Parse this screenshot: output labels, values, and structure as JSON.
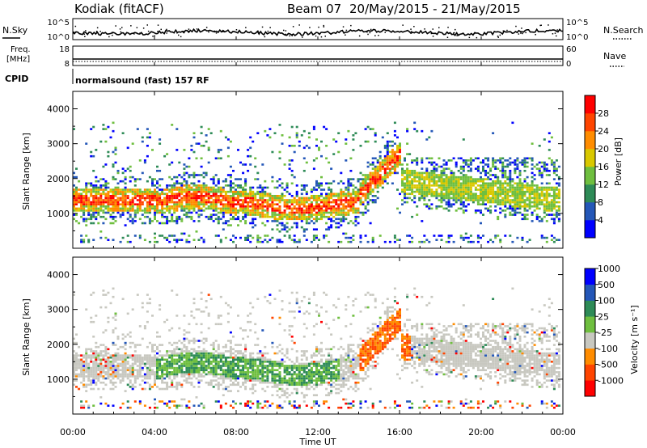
{
  "header": {
    "station": "Kodiak (fitACF)",
    "beam": "Beam 07",
    "dates": "20/May/2015 - 21/May/2015"
  },
  "summary_panels": {
    "nsky": {
      "left_label": "N.Sky",
      "right_label": "N.Search",
      "left_ticks": [
        "10^5",
        "10^0"
      ],
      "right_ticks": [
        "10^5",
        "10^0"
      ]
    },
    "freq": {
      "left_label_1": "Freq.",
      "left_label_2": "[MHz]",
      "right_label": "Nave",
      "left_ticks": [
        "18",
        "8"
      ],
      "right_ticks": [
        "60",
        "0"
      ]
    },
    "cpid": {
      "left_label": "CPID",
      "text": "normalsound (fast) 157 RF"
    }
  },
  "colors": {
    "power": [
      "#0000ff",
      "#2457b8",
      "#2e8b57",
      "#6fbf3f",
      "#d9c800",
      "#ff8c00",
      "#ff4500",
      "#ff0000"
    ],
    "velocity": [
      "#ff0000",
      "#ff4500",
      "#ff8c00",
      "#c8c8c0",
      "#6fbf3f",
      "#2e8b57",
      "#2457b8",
      "#0000ff"
    ]
  },
  "chart_data": [
    {
      "type": "heatmap",
      "name": "power",
      "ylabel": "Slant Range [km]",
      "y_ticks": [
        "1000",
        "2000",
        "3000",
        "4000"
      ],
      "ylim": [
        0,
        4500
      ],
      "xlim": [
        0,
        24
      ],
      "colorbar_label": "Power [dB]",
      "colorbar_ticks": [
        "4",
        "8",
        "12",
        "16",
        "20",
        "24",
        "28"
      ],
      "clim": [
        0,
        32
      ]
    },
    {
      "type": "heatmap",
      "name": "velocity",
      "ylabel": "Slant Range [km]",
      "y_ticks": [
        "1000",
        "2000",
        "3000",
        "4000"
      ],
      "ylim": [
        0,
        4500
      ],
      "xlim": [
        0,
        24
      ],
      "colorbar_label": "Velocity [m s⁻¹]",
      "colorbar_ticks": [
        "-1000",
        "-500",
        "-100",
        "-25",
        "25",
        "100",
        "500",
        "1000"
      ]
    }
  ],
  "xaxis": {
    "label": "Time UT",
    "ticks": [
      "00:00",
      "04:00",
      "08:00",
      "12:00",
      "16:00",
      "20:00",
      "00:00"
    ]
  }
}
